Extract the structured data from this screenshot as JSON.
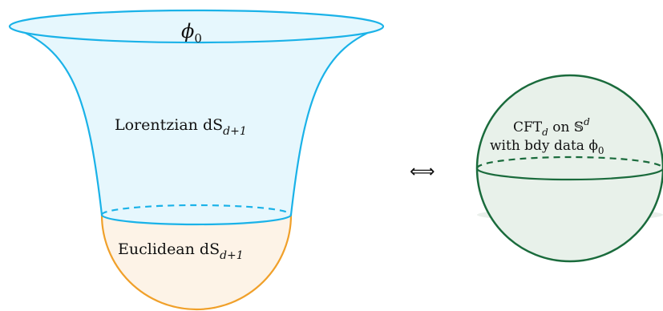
{
  "diagram": {
    "top_label": {
      "main": "ϕ",
      "sub": "0"
    },
    "lorentzian_label": {
      "text": "Lorentzian dS",
      "sub": "d+1"
    },
    "euclidean_label": {
      "text": "Euclidean dS",
      "sub": "d+1"
    },
    "equivalence_symbol": "⟺",
    "sphere_label_line1": {
      "text": "CFT",
      "sub": "d",
      "rest": " on 𝕊",
      "sup": "d"
    },
    "sphere_label_line2": {
      "text": "with bdy data ϕ",
      "sub": "0"
    }
  },
  "colors": {
    "lorentzian_fill": "#e6f7fd",
    "lorentzian_stroke": "#1ab2e8",
    "euclidean_fill": "#fdf3e7",
    "euclidean_stroke": "#f0a02a",
    "sphere_fill": "#e8f1ea",
    "sphere_stroke": "#1a6b3c",
    "sphere_shadow": "#eaefeb"
  }
}
